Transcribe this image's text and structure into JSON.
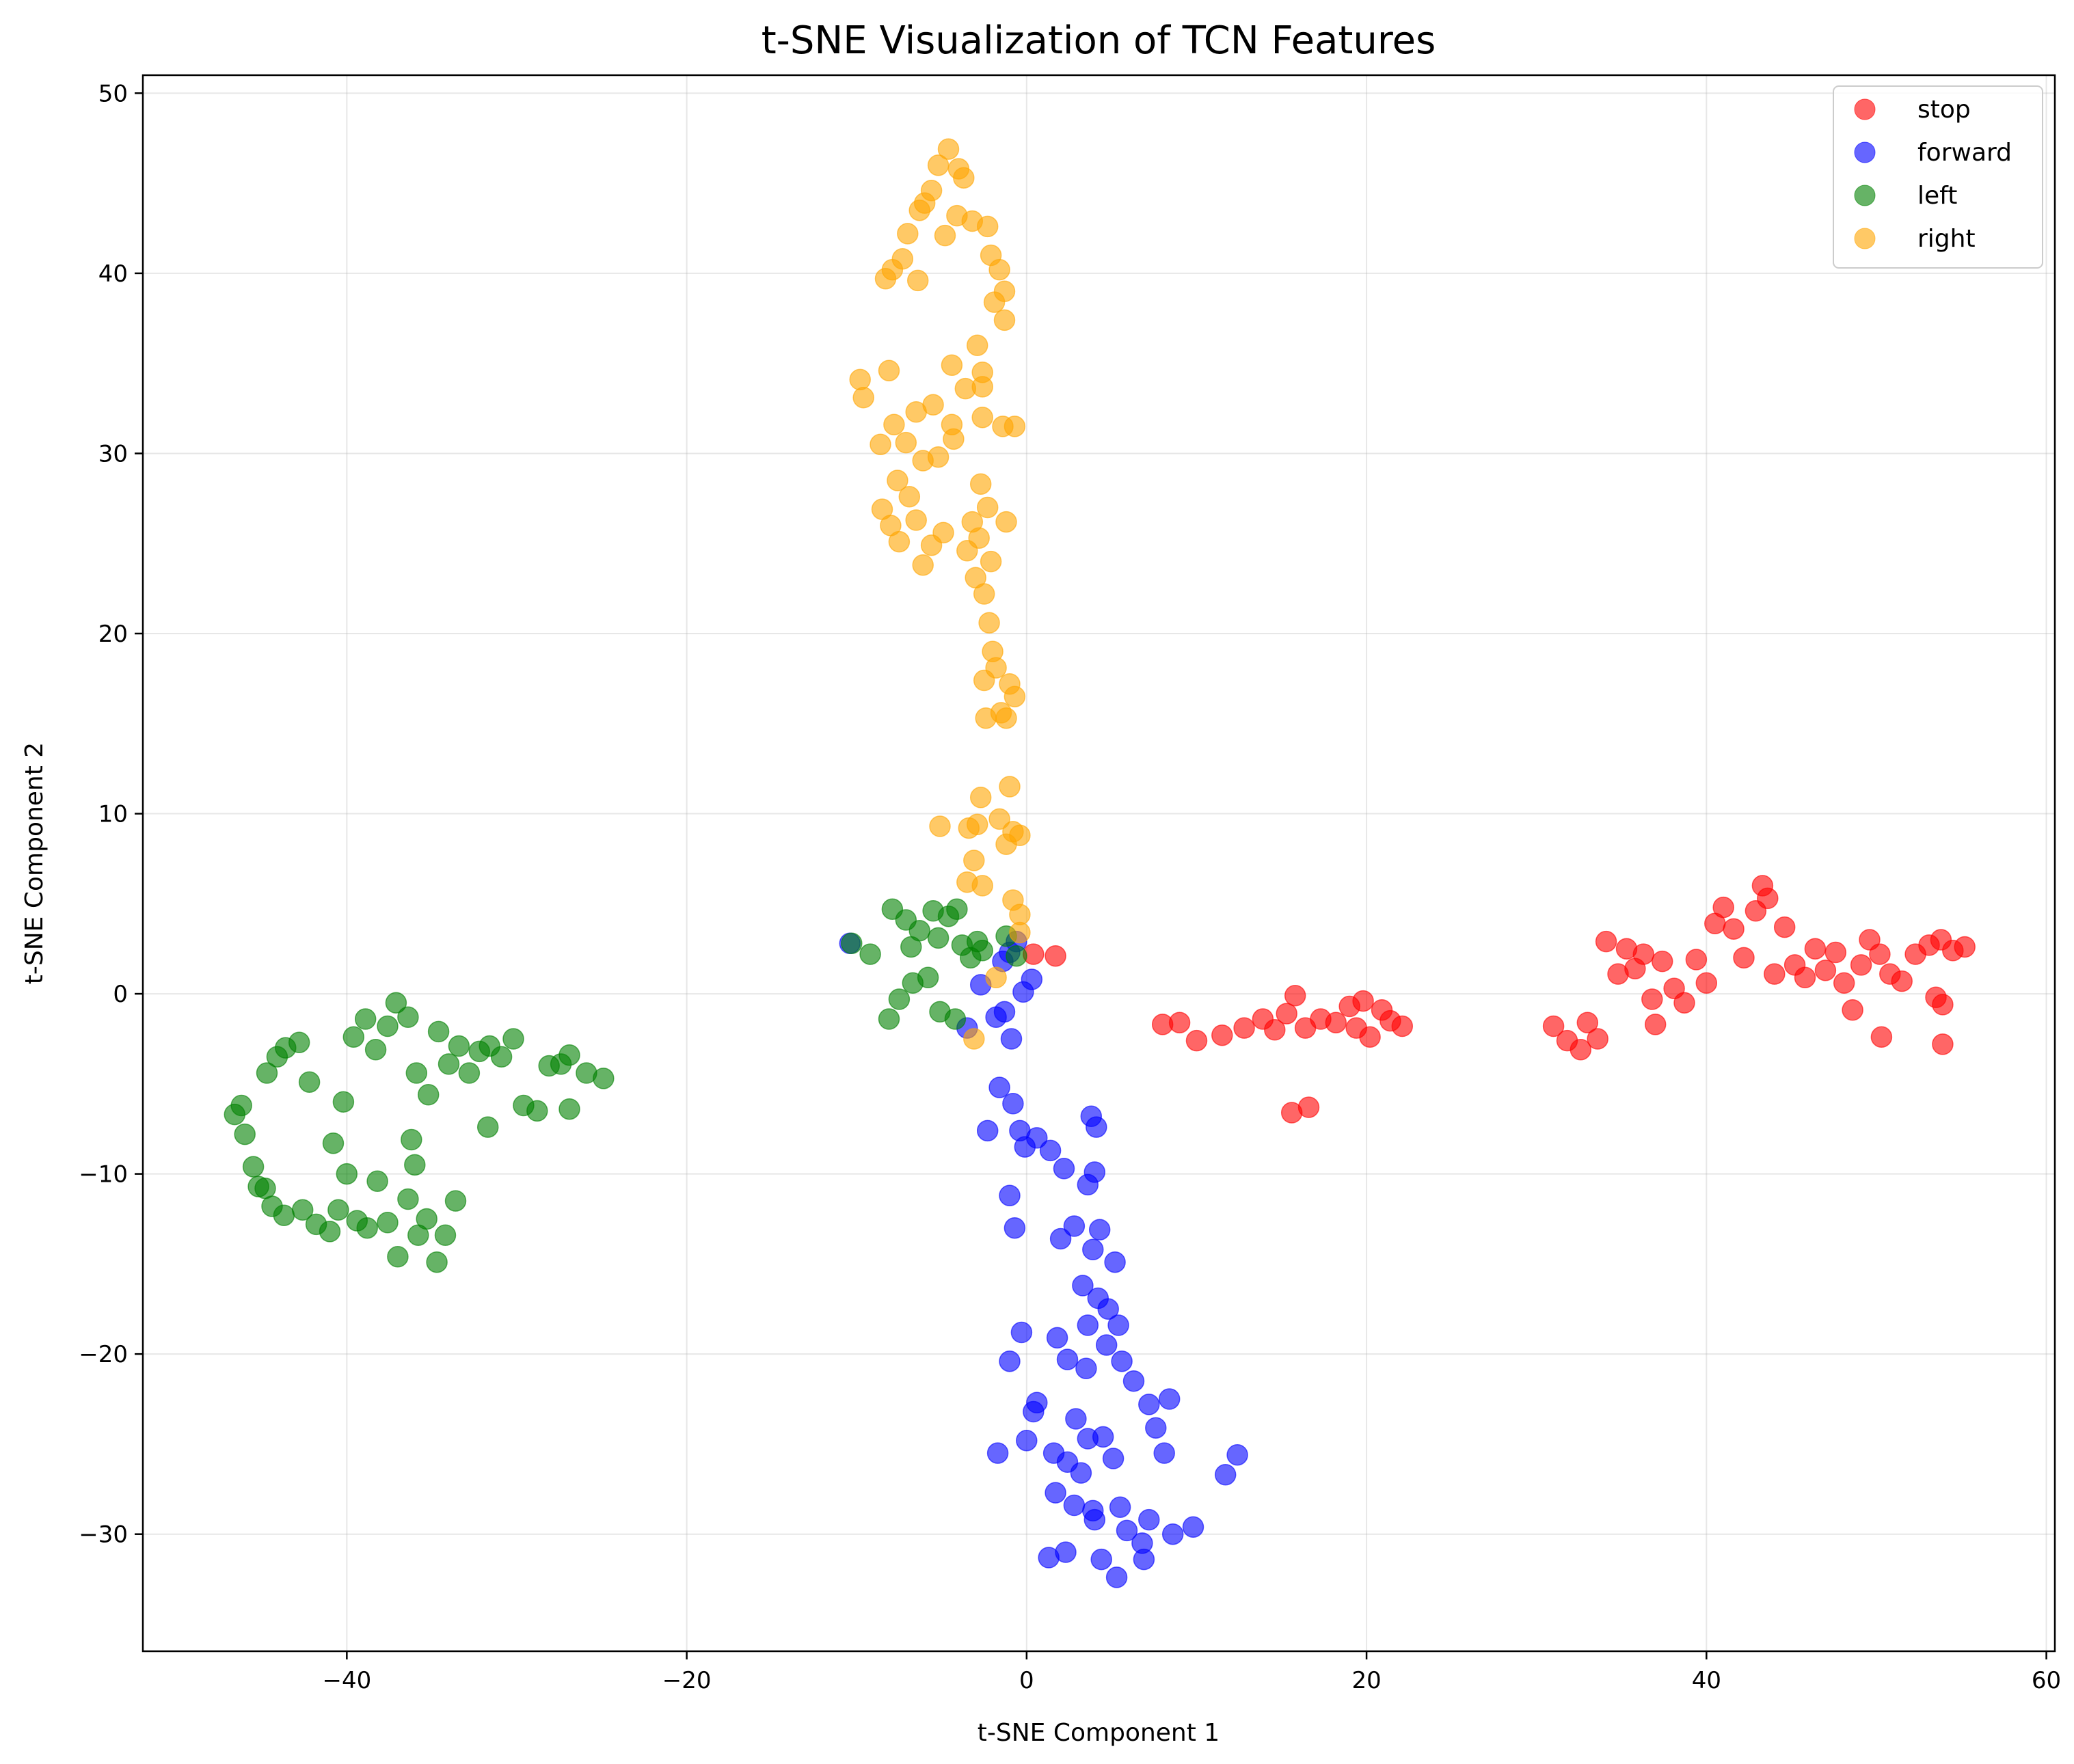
{
  "chart_data": {
    "type": "scatter",
    "title": "t-SNE Visualization of TCN Features",
    "xlabel": "t-SNE Component 1",
    "ylabel": "t-SNE Component 2",
    "xlim": [
      -52,
      60.5
    ],
    "ylim": [
      -36.5,
      51
    ],
    "xticks": [
      -40,
      -20,
      0,
      20,
      40,
      60
    ],
    "yticks": [
      -30,
      -20,
      -10,
      0,
      10,
      20,
      30,
      40,
      50
    ],
    "xtick_labels": [
      "−40",
      "−20",
      "0",
      "20",
      "40",
      "60"
    ],
    "ytick_labels": [
      "−30",
      "−20",
      "−10",
      "0",
      "10",
      "20",
      "30",
      "40",
      "50"
    ],
    "grid": true,
    "legend_position": "top-right",
    "series": [
      {
        "name": "stop",
        "color": "#ff0000",
        "points": [
          [
            0.4,
            2.2
          ],
          [
            1.7,
            2.1
          ],
          [
            8.0,
            -1.7
          ],
          [
            9.0,
            -1.6
          ],
          [
            10.0,
            -2.6
          ],
          [
            11.5,
            -2.3
          ],
          [
            12.8,
            -1.9
          ],
          [
            13.9,
            -1.4
          ],
          [
            14.6,
            -2.0
          ],
          [
            15.3,
            -1.1
          ],
          [
            15.8,
            -0.1
          ],
          [
            16.4,
            -1.9
          ],
          [
            17.3,
            -1.4
          ],
          [
            18.2,
            -1.6
          ],
          [
            19.0,
            -0.7
          ],
          [
            19.4,
            -1.9
          ],
          [
            19.8,
            -0.4
          ],
          [
            20.2,
            -2.4
          ],
          [
            20.9,
            -0.9
          ],
          [
            21.4,
            -1.5
          ],
          [
            22.1,
            -1.8
          ],
          [
            15.6,
            -6.6
          ],
          [
            16.6,
            -6.3
          ],
          [
            33.0,
            -1.6
          ],
          [
            33.6,
            -2.5
          ],
          [
            34.1,
            2.9
          ],
          [
            34.8,
            1.1
          ],
          [
            35.3,
            2.5
          ],
          [
            35.8,
            1.4
          ],
          [
            36.3,
            2.2
          ],
          [
            36.8,
            -0.3
          ],
          [
            37.4,
            1.8
          ],
          [
            38.1,
            0.3
          ],
          [
            38.7,
            -0.5
          ],
          [
            39.4,
            1.9
          ],
          [
            40.0,
            0.6
          ],
          [
            40.5,
            3.9
          ],
          [
            41.0,
            4.8
          ],
          [
            41.6,
            3.6
          ],
          [
            42.2,
            2.0
          ],
          [
            42.9,
            4.6
          ],
          [
            43.3,
            6.0
          ],
          [
            43.6,
            5.3
          ],
          [
            44.0,
            1.1
          ],
          [
            44.6,
            3.7
          ],
          [
            45.2,
            1.6
          ],
          [
            45.8,
            0.9
          ],
          [
            46.4,
            2.5
          ],
          [
            47.0,
            1.3
          ],
          [
            47.6,
            2.3
          ],
          [
            48.1,
            0.6
          ],
          [
            48.6,
            -0.9
          ],
          [
            49.1,
            1.6
          ],
          [
            49.6,
            3.0
          ],
          [
            50.2,
            2.2
          ],
          [
            50.8,
            1.1
          ],
          [
            51.5,
            0.7
          ],
          [
            52.3,
            2.2
          ],
          [
            53.1,
            2.7
          ],
          [
            53.8,
            3.0
          ],
          [
            54.5,
            2.4
          ],
          [
            55.2,
            2.6
          ],
          [
            53.5,
            -0.2
          ],
          [
            53.9,
            -0.6
          ],
          [
            50.3,
            -2.4
          ],
          [
            53.9,
            -2.8
          ],
          [
            31.0,
            -1.8
          ],
          [
            31.8,
            -2.6
          ],
          [
            32.6,
            -3.1
          ],
          [
            37.0,
            -1.7
          ]
        ]
      },
      {
        "name": "forward",
        "color": "#0000ff",
        "points": [
          [
            -10.4,
            2.8
          ],
          [
            -3.5,
            -1.9
          ],
          [
            -2.7,
            0.5
          ],
          [
            -1.8,
            -1.3
          ],
          [
            -1.4,
            1.8
          ],
          [
            -1.0,
            2.3
          ],
          [
            -0.6,
            2.9
          ],
          [
            -0.2,
            0.1
          ],
          [
            0.3,
            0.8
          ],
          [
            -1.6,
            -5.2
          ],
          [
            -0.8,
            -6.1
          ],
          [
            -0.4,
            -7.6
          ],
          [
            -0.1,
            -8.5
          ],
          [
            0.6,
            -8.0
          ],
          [
            1.4,
            -8.7
          ],
          [
            2.2,
            -9.7
          ],
          [
            3.8,
            -6.8
          ],
          [
            4.1,
            -7.4
          ],
          [
            3.6,
            -10.6
          ],
          [
            4.0,
            -9.9
          ],
          [
            -1.0,
            -11.2
          ],
          [
            -0.7,
            -13.0
          ],
          [
            2.0,
            -13.6
          ],
          [
            2.8,
            -12.9
          ],
          [
            3.9,
            -14.2
          ],
          [
            4.3,
            -13.1
          ],
          [
            5.2,
            -14.9
          ],
          [
            3.3,
            -16.2
          ],
          [
            4.2,
            -16.9
          ],
          [
            4.8,
            -17.5
          ],
          [
            3.6,
            -18.4
          ],
          [
            4.7,
            -19.5
          ],
          [
            5.4,
            -18.4
          ],
          [
            1.8,
            -19.1
          ],
          [
            2.4,
            -20.3
          ],
          [
            3.5,
            -20.8
          ],
          [
            5.6,
            -20.4
          ],
          [
            6.3,
            -21.5
          ],
          [
            7.2,
            -22.8
          ],
          [
            8.4,
            -22.5
          ],
          [
            -1.0,
            -20.4
          ],
          [
            -0.3,
            -18.8
          ],
          [
            0.6,
            -22.7
          ],
          [
            0.4,
            -23.2
          ],
          [
            2.9,
            -23.6
          ],
          [
            3.6,
            -24.7
          ],
          [
            4.5,
            -24.6
          ],
          [
            1.6,
            -25.5
          ],
          [
            2.4,
            -26.0
          ],
          [
            3.2,
            -26.6
          ],
          [
            5.1,
            -25.8
          ],
          [
            7.6,
            -24.1
          ],
          [
            8.1,
            -25.5
          ],
          [
            1.7,
            -27.7
          ],
          [
            2.8,
            -28.4
          ],
          [
            3.9,
            -28.7
          ],
          [
            5.5,
            -28.5
          ],
          [
            4.0,
            -29.2
          ],
          [
            5.9,
            -29.8
          ],
          [
            6.8,
            -30.5
          ],
          [
            7.2,
            -29.2
          ],
          [
            8.6,
            -30.0
          ],
          [
            9.8,
            -29.6
          ],
          [
            1.3,
            -31.3
          ],
          [
            2.3,
            -31.0
          ],
          [
            4.4,
            -31.4
          ],
          [
            5.3,
            -32.4
          ],
          [
            6.9,
            -31.4
          ],
          [
            -1.7,
            -25.5
          ],
          [
            0.0,
            -24.8
          ],
          [
            11.7,
            -26.7
          ],
          [
            12.4,
            -25.6
          ],
          [
            -2.3,
            -7.6
          ],
          [
            -0.9,
            -2.5
          ],
          [
            -1.3,
            -1.0
          ]
        ]
      },
      {
        "name": "left",
        "color": "#008000",
        "points": [
          [
            -46.6,
            -6.7
          ],
          [
            -46.0,
            -7.8
          ],
          [
            -45.5,
            -9.6
          ],
          [
            -45.2,
            -10.7
          ],
          [
            -44.7,
            -4.4
          ],
          [
            -44.1,
            -3.5
          ],
          [
            -43.6,
            -3.0
          ],
          [
            -42.8,
            -2.7
          ],
          [
            -44.4,
            -11.8
          ],
          [
            -43.7,
            -12.3
          ],
          [
            -42.6,
            -12.0
          ],
          [
            -41.8,
            -12.8
          ],
          [
            -41.0,
            -13.2
          ],
          [
            -40.5,
            -12.0
          ],
          [
            -40.0,
            -10.0
          ],
          [
            -39.4,
            -12.6
          ],
          [
            -38.8,
            -13.0
          ],
          [
            -38.2,
            -10.4
          ],
          [
            -37.6,
            -12.7
          ],
          [
            -37.0,
            -14.6
          ],
          [
            -36.4,
            -11.4
          ],
          [
            -35.8,
            -13.4
          ],
          [
            -35.3,
            -12.5
          ],
          [
            -34.7,
            -14.9
          ],
          [
            -34.2,
            -13.4
          ],
          [
            -33.6,
            -11.5
          ],
          [
            -40.8,
            -8.3
          ],
          [
            -40.2,
            -6.0
          ],
          [
            -39.6,
            -2.4
          ],
          [
            -38.9,
            -1.4
          ],
          [
            -38.3,
            -3.1
          ],
          [
            -37.6,
            -1.8
          ],
          [
            -37.1,
            -0.5
          ],
          [
            -36.4,
            -1.3
          ],
          [
            -35.9,
            -4.4
          ],
          [
            -35.2,
            -5.6
          ],
          [
            -34.6,
            -2.1
          ],
          [
            -34.0,
            -3.9
          ],
          [
            -33.4,
            -2.9
          ],
          [
            -32.8,
            -4.4
          ],
          [
            -32.2,
            -3.2
          ],
          [
            -31.6,
            -2.9
          ],
          [
            -30.9,
            -3.5
          ],
          [
            -30.2,
            -2.5
          ],
          [
            -29.6,
            -6.2
          ],
          [
            -28.8,
            -6.5
          ],
          [
            -28.1,
            -4.0
          ],
          [
            -27.4,
            -3.9
          ],
          [
            -26.9,
            -3.4
          ],
          [
            -25.9,
            -4.4
          ],
          [
            -24.9,
            -4.7
          ],
          [
            -26.9,
            -6.4
          ],
          [
            -31.7,
            -7.4
          ],
          [
            -36.2,
            -8.1
          ],
          [
            -36.0,
            -9.5
          ],
          [
            -42.2,
            -4.9
          ],
          [
            -44.8,
            -10.8
          ],
          [
            -46.2,
            -6.2
          ],
          [
            -8.1,
            -1.4
          ],
          [
            -7.5,
            -0.3
          ],
          [
            -9.2,
            2.2
          ],
          [
            -7.9,
            4.7
          ],
          [
            -7.1,
            4.1
          ],
          [
            -6.8,
            2.6
          ],
          [
            -6.3,
            3.5
          ],
          [
            -5.8,
            0.9
          ],
          [
            -5.2,
            3.1
          ],
          [
            -4.6,
            4.3
          ],
          [
            -4.1,
            4.7
          ],
          [
            -3.8,
            2.7
          ],
          [
            -3.3,
            2.0
          ],
          [
            -2.9,
            2.9
          ],
          [
            -1.2,
            3.2
          ],
          [
            -0.6,
            2.1
          ],
          [
            -5.1,
            -1.0
          ],
          [
            -4.2,
            -1.4
          ],
          [
            -2.6,
            2.4
          ],
          [
            -5.5,
            4.6
          ],
          [
            -6.7,
            0.6
          ],
          [
            -10.3,
            2.8
          ]
        ]
      },
      {
        "name": "right",
        "color": "#ffa500",
        "points": [
          [
            -5.2,
            46.0
          ],
          [
            -4.6,
            46.9
          ],
          [
            -3.7,
            45.3
          ],
          [
            -4.1,
            43.2
          ],
          [
            -3.2,
            42.9
          ],
          [
            -2.3,
            42.6
          ],
          [
            -5.6,
            44.6
          ],
          [
            -6.3,
            43.5
          ],
          [
            -7.0,
            42.2
          ],
          [
            -7.9,
            40.2
          ],
          [
            -8.3,
            39.7
          ],
          [
            -7.3,
            40.8
          ],
          [
            -6.4,
            39.6
          ],
          [
            -2.1,
            41.0
          ],
          [
            -1.6,
            40.2
          ],
          [
            -1.3,
            39.0
          ],
          [
            -1.9,
            38.4
          ],
          [
            -1.3,
            37.4
          ],
          [
            -2.9,
            36.0
          ],
          [
            -4.4,
            34.9
          ],
          [
            -3.6,
            33.6
          ],
          [
            -2.6,
            34.5
          ],
          [
            -2.6,
            33.7
          ],
          [
            -9.8,
            34.1
          ],
          [
            -9.6,
            33.1
          ],
          [
            -8.1,
            34.6
          ],
          [
            -6.5,
            32.3
          ],
          [
            -5.5,
            32.7
          ],
          [
            -4.4,
            31.6
          ],
          [
            -2.6,
            32.0
          ],
          [
            -1.4,
            31.5
          ],
          [
            -0.7,
            31.5
          ],
          [
            -7.8,
            31.6
          ],
          [
            -8.6,
            30.5
          ],
          [
            -7.1,
            30.6
          ],
          [
            -6.1,
            29.6
          ],
          [
            -5.2,
            29.8
          ],
          [
            -4.3,
            30.8
          ],
          [
            -7.6,
            28.5
          ],
          [
            -6.9,
            27.6
          ],
          [
            -8.5,
            26.9
          ],
          [
            -8.0,
            26.0
          ],
          [
            -7.5,
            25.1
          ],
          [
            -6.5,
            26.3
          ],
          [
            -5.6,
            24.9
          ],
          [
            -6.1,
            23.8
          ],
          [
            -4.9,
            25.6
          ],
          [
            -2.7,
            28.3
          ],
          [
            -2.3,
            27.0
          ],
          [
            -3.2,
            26.2
          ],
          [
            -2.8,
            25.3
          ],
          [
            -3.5,
            24.6
          ],
          [
            -2.1,
            24.0
          ],
          [
            -1.2,
            26.2
          ],
          [
            -3.0,
            23.1
          ],
          [
            -2.5,
            22.2
          ],
          [
            -2.2,
            20.6
          ],
          [
            -2.0,
            19.0
          ],
          [
            -1.8,
            18.1
          ],
          [
            -2.5,
            17.4
          ],
          [
            -1.0,
            17.2
          ],
          [
            -0.7,
            16.5
          ],
          [
            -1.5,
            15.6
          ],
          [
            -2.4,
            15.3
          ],
          [
            -1.2,
            15.3
          ],
          [
            -2.7,
            10.9
          ],
          [
            -2.9,
            9.4
          ],
          [
            -3.4,
            9.2
          ],
          [
            -1.6,
            9.7
          ],
          [
            -0.8,
            9.0
          ],
          [
            -0.4,
            8.8
          ],
          [
            -5.1,
            9.3
          ],
          [
            -1.0,
            11.5
          ],
          [
            -1.2,
            8.3
          ],
          [
            -3.1,
            7.4
          ],
          [
            -3.5,
            6.2
          ],
          [
            -2.6,
            6.0
          ],
          [
            -0.8,
            5.2
          ],
          [
            -0.4,
            4.4
          ],
          [
            -0.4,
            3.4
          ],
          [
            -1.8,
            0.9
          ],
          [
            -3.1,
            -2.5
          ],
          [
            -4.0,
            45.8
          ],
          [
            -4.8,
            42.1
          ],
          [
            -6.0,
            43.9
          ]
        ]
      }
    ]
  }
}
